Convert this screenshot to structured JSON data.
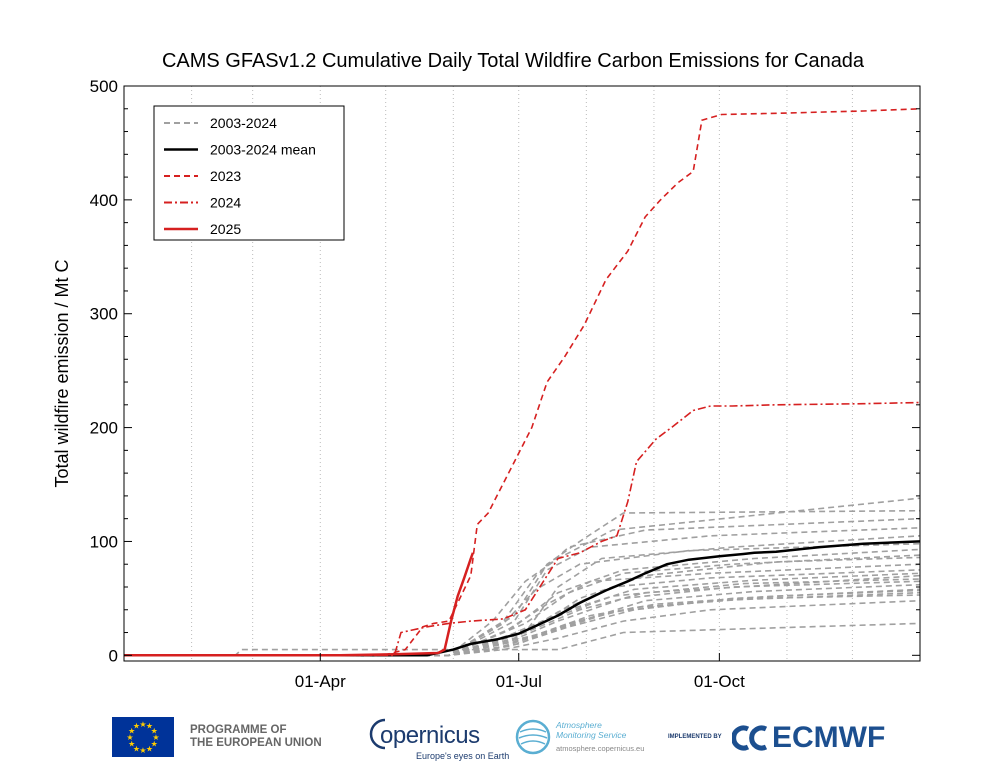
{
  "chart_data": {
    "type": "line",
    "title": "CAMS GFASv1.2 Cumulative Daily Total Wildfire Carbon Emissions for Canada",
    "xlabel": "",
    "ylabel": "Total wildfire emission / Mt C",
    "xlim": [
      1,
      366
    ],
    "ylim": [
      -5,
      500
    ],
    "yticks": [
      0,
      100,
      200,
      300,
      400,
      500
    ],
    "xticks": [
      {
        "label": "01-Apr",
        "day": 91
      },
      {
        "label": "01-Jul",
        "day": 182
      },
      {
        "label": "01-Oct",
        "day": 274
      }
    ],
    "month_gridlines": [
      32,
      60,
      91,
      121,
      152,
      182,
      213,
      244,
      274,
      305,
      335
    ],
    "grid": "vertical dotted at month starts",
    "legend": {
      "placement": "top-left",
      "entries": [
        {
          "label": "2003-2024",
          "style": "dashed",
          "color": "#a0a0a0"
        },
        {
          "label": "2003-2024 mean",
          "style": "solid",
          "color": "#000000"
        },
        {
          "label": "2023",
          "style": "dashed",
          "color": "#d62020"
        },
        {
          "label": "2024",
          "style": "dashdot",
          "color": "#d62020"
        },
        {
          "label": "2025",
          "style": "solid",
          "color": "#d62020"
        }
      ]
    },
    "series": [
      {
        "name": "2003-2024 mean",
        "color": "#000000",
        "style": "solid",
        "points": [
          [
            1,
            0
          ],
          [
            100,
            0
          ],
          [
            140,
            0
          ],
          [
            152,
            5
          ],
          [
            160,
            10
          ],
          [
            172,
            14
          ],
          [
            182,
            19
          ],
          [
            190,
            26
          ],
          [
            200,
            35
          ],
          [
            210,
            46
          ],
          [
            222,
            57
          ],
          [
            232,
            65
          ],
          [
            240,
            72
          ],
          [
            250,
            80
          ],
          [
            260,
            84
          ],
          [
            274,
            87
          ],
          [
            285,
            89
          ],
          [
            290,
            90
          ],
          [
            300,
            91
          ],
          [
            320,
            95
          ],
          [
            340,
            98
          ],
          [
            366,
            100
          ]
        ]
      },
      {
        "name": "2023",
        "color": "#d62020",
        "style": "dashed",
        "points": [
          [
            1,
            0
          ],
          [
            120,
            0
          ],
          [
            130,
            5
          ],
          [
            138,
            25
          ],
          [
            143,
            28
          ],
          [
            150,
            30
          ],
          [
            160,
            70
          ],
          [
            163,
            115
          ],
          [
            168,
            125
          ],
          [
            172,
            140
          ],
          [
            180,
            170
          ],
          [
            188,
            200
          ],
          [
            195,
            240
          ],
          [
            203,
            262
          ],
          [
            212,
            290
          ],
          [
            222,
            330
          ],
          [
            232,
            355
          ],
          [
            240,
            385
          ],
          [
            247,
            400
          ],
          [
            255,
            415
          ],
          [
            262,
            425
          ],
          [
            266,
            470
          ],
          [
            275,
            475
          ],
          [
            300,
            476
          ],
          [
            340,
            478
          ],
          [
            366,
            480
          ]
        ]
      },
      {
        "name": "2024",
        "color": "#d62020",
        "style": "dashdot",
        "points": [
          [
            1,
            0
          ],
          [
            125,
            0
          ],
          [
            128,
            20
          ],
          [
            140,
            25
          ],
          [
            150,
            28
          ],
          [
            160,
            30
          ],
          [
            175,
            32
          ],
          [
            185,
            40
          ],
          [
            190,
            55
          ],
          [
            195,
            70
          ],
          [
            200,
            85
          ],
          [
            210,
            90
          ],
          [
            220,
            100
          ],
          [
            227,
            105
          ],
          [
            232,
            135
          ],
          [
            236,
            170
          ],
          [
            245,
            190
          ],
          [
            252,
            200
          ],
          [
            262,
            215
          ],
          [
            270,
            219
          ],
          [
            280,
            219
          ],
          [
            300,
            220
          ],
          [
            340,
            221
          ],
          [
            366,
            222
          ]
        ]
      },
      {
        "name": "2025",
        "color": "#d62020",
        "style": "solid",
        "points": [
          [
            1,
            0
          ],
          [
            100,
            0
          ],
          [
            125,
            1
          ],
          [
            145,
            2
          ],
          [
            148,
            5
          ],
          [
            151,
            30
          ],
          [
            154,
            52
          ],
          [
            157,
            68
          ],
          [
            160,
            85
          ],
          [
            161,
            90
          ]
        ]
      }
    ],
    "gray_series_color": "#a0a0a0",
    "gray_series": [
      [
        [
          1,
          0
        ],
        [
          52,
          0
        ],
        [
          55,
          5
        ],
        [
          200,
          5
        ],
        [
          230,
          20
        ],
        [
          366,
          28
        ]
      ],
      [
        [
          1,
          0
        ],
        [
          150,
          0
        ],
        [
          175,
          5
        ],
        [
          200,
          15
        ],
        [
          230,
          30
        ],
        [
          270,
          40
        ],
        [
          366,
          48
        ]
      ],
      [
        [
          1,
          0
        ],
        [
          150,
          0
        ],
        [
          178,
          8
        ],
        [
          205,
          25
        ],
        [
          235,
          40
        ],
        [
          280,
          50
        ],
        [
          366,
          58
        ]
      ],
      [
        [
          1,
          0
        ],
        [
          150,
          0
        ],
        [
          170,
          5
        ],
        [
          195,
          20
        ],
        [
          225,
          38
        ],
        [
          270,
          48
        ],
        [
          366,
          55
        ]
      ],
      [
        [
          1,
          0
        ],
        [
          150,
          0
        ],
        [
          180,
          12
        ],
        [
          210,
          30
        ],
        [
          240,
          48
        ],
        [
          290,
          56
        ],
        [
          366,
          62
        ]
      ],
      [
        [
          1,
          0
        ],
        [
          150,
          0
        ],
        [
          175,
          10
        ],
        [
          200,
          30
        ],
        [
          230,
          50
        ],
        [
          280,
          60
        ],
        [
          366,
          65
        ]
      ],
      [
        [
          1,
          0
        ],
        [
          150,
          0
        ],
        [
          185,
          20
        ],
        [
          210,
          40
        ],
        [
          240,
          55
        ],
        [
          300,
          62
        ],
        [
          366,
          70
        ]
      ],
      [
        [
          1,
          0
        ],
        [
          150,
          0
        ],
        [
          180,
          15
        ],
        [
          200,
          38
        ],
        [
          225,
          60
        ],
        [
          270,
          68
        ],
        [
          366,
          75
        ]
      ],
      [
        [
          1,
          0
        ],
        [
          150,
          0
        ],
        [
          175,
          20
        ],
        [
          195,
          45
        ],
        [
          215,
          65
        ],
        [
          270,
          72
        ],
        [
          366,
          80
        ]
      ],
      [
        [
          1,
          0
        ],
        [
          150,
          0
        ],
        [
          190,
          25
        ],
        [
          210,
          50
        ],
        [
          240,
          70
        ],
        [
          300,
          82
        ],
        [
          366,
          86
        ]
      ],
      [
        [
          1,
          0
        ],
        [
          150,
          0
        ],
        [
          180,
          25
        ],
        [
          200,
          55
        ],
        [
          230,
          75
        ],
        [
          290,
          85
        ],
        [
          366,
          93
        ]
      ],
      [
        [
          1,
          0
        ],
        [
          150,
          0
        ],
        [
          185,
          20
        ],
        [
          200,
          60
        ],
        [
          220,
          85
        ],
        [
          280,
          95
        ],
        [
          366,
          105
        ]
      ],
      [
        [
          1,
          0
        ],
        [
          150,
          0
        ],
        [
          180,
          30
        ],
        [
          195,
          75
        ],
        [
          215,
          95
        ],
        [
          270,
          105
        ],
        [
          366,
          112
        ]
      ],
      [
        [
          1,
          0
        ],
        [
          150,
          0
        ],
        [
          175,
          30
        ],
        [
          190,
          70
        ],
        [
          205,
          95
        ],
        [
          240,
          110
        ],
        [
          366,
          120
        ]
      ],
      [
        [
          1,
          0
        ],
        [
          150,
          0
        ],
        [
          180,
          35
        ],
        [
          195,
          80
        ],
        [
          210,
          100
        ],
        [
          230,
          125
        ],
        [
          366,
          127
        ]
      ],
      [
        [
          1,
          0
        ],
        [
          150,
          0
        ],
        [
          170,
          30
        ],
        [
          185,
          65
        ],
        [
          200,
          85
        ],
        [
          225,
          110
        ],
        [
          366,
          138
        ]
      ],
      [
        [
          1,
          0
        ],
        [
          150,
          0
        ],
        [
          185,
          28
        ],
        [
          205,
          55
        ],
        [
          230,
          72
        ],
        [
          280,
          80
        ],
        [
          366,
          88
        ]
      ],
      [
        [
          1,
          0
        ],
        [
          150,
          0
        ],
        [
          190,
          18
        ],
        [
          215,
          35
        ],
        [
          245,
          45
        ],
        [
          300,
          52
        ],
        [
          366,
          57
        ]
      ],
      [
        [
          1,
          0
        ],
        [
          150,
          0
        ],
        [
          178,
          18
        ],
        [
          205,
          40
        ],
        [
          235,
          58
        ],
        [
          290,
          66
        ],
        [
          366,
          72
        ]
      ],
      [
        [
          1,
          0
        ],
        [
          150,
          0
        ],
        [
          175,
          28
        ],
        [
          190,
          58
        ],
        [
          210,
          80
        ],
        [
          260,
          92
        ],
        [
          366,
          98
        ]
      ],
      [
        [
          1,
          0
        ],
        [
          150,
          0
        ],
        [
          182,
          10
        ],
        [
          205,
          28
        ],
        [
          235,
          42
        ],
        [
          290,
          50
        ],
        [
          366,
          53
        ]
      ],
      [
        [
          1,
          0
        ],
        [
          150,
          0
        ],
        [
          172,
          12
        ],
        [
          198,
          33
        ],
        [
          225,
          52
        ],
        [
          285,
          63
        ],
        [
          366,
          67
        ]
      ]
    ]
  },
  "footer": {
    "eu_line1": "PROGRAMME OF",
    "eu_line2": "THE EUROPEAN UNION",
    "copernicus_word": "opernicus",
    "copernicus_tagline": "Europe's eyes on Earth",
    "cams_line1": "Atmosphere",
    "cams_line2": "Monitoring Service",
    "cams_url": "atmosphere.copernicus.eu",
    "implemented_by": "IMPLEMENTED BY",
    "ecmwf": "ECMWF",
    "colors": {
      "eu_blue": "#003399",
      "eu_star": "#ffcc00",
      "copernicus_navy": "#1c3b6e",
      "cams_blue": "#5aaed2",
      "ecmwf_blue": "#1c4f8f"
    }
  }
}
